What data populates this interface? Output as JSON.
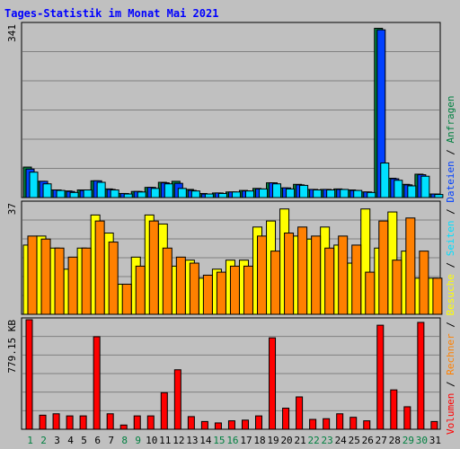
{
  "chart_data": {
    "type": "bar",
    "title": "Tages-Statistik im Monat Mai 2021",
    "categories": [
      "1",
      "2",
      "3",
      "4",
      "5",
      "6",
      "7",
      "8",
      "9",
      "10",
      "11",
      "12",
      "13",
      "14",
      "15",
      "16",
      "17",
      "18",
      "19",
      "20",
      "21",
      "22",
      "23",
      "24",
      "25",
      "26",
      "27",
      "28",
      "29",
      "30",
      "31"
    ],
    "weekend_days": [
      "1",
      "2",
      "8",
      "9",
      "15",
      "16",
      "22",
      "23",
      "29",
      "30"
    ],
    "panels": [
      {
        "id": "hits",
        "axis_max_label": "341",
        "ylim": [
          0,
          341
        ],
        "series": [
          {
            "name": "Anfragen",
            "color": "#008040",
            "values": [
              60,
              32,
              15,
              13,
              15,
              33,
              17,
              8,
              12,
              20,
              30,
              32,
              16,
              8,
              9,
              11,
              14,
              18,
              29,
              19,
              26,
              16,
              16,
              17,
              15,
              11,
              333,
              38,
              26,
              46,
              7
            ]
          },
          {
            "name": "Dateien",
            "color": "#0040ff",
            "values": [
              56,
              32,
              15,
              12,
              14,
              33,
              16,
              8,
              12,
              20,
              29,
              28,
              14,
              7,
              9,
              11,
              13,
              17,
              29,
              19,
              25,
              16,
              16,
              16,
              14,
              11,
              330,
              37,
              25,
              45,
              7
            ]
          },
          {
            "name": "Seiten",
            "color": "#00e0ff",
            "values": [
              50,
              27,
              14,
              10,
              15,
              30,
              15,
              7,
              11,
              18,
              27,
              18,
              13,
              7,
              8,
              11,
              13,
              17,
              27,
              17,
              24,
              15,
              15,
              16,
              14,
              10,
              68,
              34,
              23,
              42,
              6
            ]
          }
        ]
      },
      {
        "id": "visits",
        "axis_max_label": "37",
        "ylim": [
          0,
          37
        ],
        "series": [
          {
            "name": "Besuche",
            "color": "#ffff00",
            "values": [
              23,
              26,
              22,
              15,
              22,
              33,
              27,
              10,
              19,
              33,
              30,
              16,
              18,
              12,
              15,
              18,
              18,
              29,
              31,
              35,
              26,
              25,
              29,
              23,
              17,
              35,
              22,
              34,
              21,
              12,
              12
            ]
          },
          {
            "name": "Rechner",
            "color": "#ff8000",
            "values": [
              26,
              25,
              22,
              19,
              22,
              31,
              24,
              10,
              16,
              31,
              22,
              19,
              17,
              13,
              14,
              16,
              16,
              26,
              21,
              27,
              29,
              26,
              22,
              26,
              23,
              14,
              31,
              18,
              32,
              21,
              12
            ]
          }
        ]
      },
      {
        "id": "volume",
        "axis_max_label": "779.15 KB",
        "ylim": [
          0,
          779.15
        ],
        "series": [
          {
            "name": "Volumen",
            "color": "#ff0000",
            "values": [
              779,
              100,
              110,
              95,
              95,
              658,
              110,
              30,
              95,
              95,
              260,
              423,
              90,
              55,
              45,
              60,
              65,
              95,
              650,
              150,
              230,
              70,
              75,
              110,
              85,
              60,
              740,
              280,
              160,
              760,
              55
            ]
          }
        ]
      }
    ],
    "legend": [
      {
        "text": "Volumen",
        "color": "#ff0000"
      },
      {
        "text": "/",
        "color": "#000000"
      },
      {
        "text": "Rechner",
        "color": "#ff8000"
      },
      {
        "text": "/",
        "color": "#000000"
      },
      {
        "text": "Besuche",
        "color": "#ffff00"
      },
      {
        "text": "/",
        "color": "#000000"
      },
      {
        "text": "Seiten",
        "color": "#00e0ff"
      },
      {
        "text": "/",
        "color": "#000000"
      },
      {
        "text": "Dateien",
        "color": "#0040ff"
      },
      {
        "text": "/",
        "color": "#000000"
      },
      {
        "text": "Anfragen",
        "color": "#008040"
      }
    ],
    "colors": {
      "title": "#0000ff",
      "weekday_label": "#000000",
      "weekend_label": "#008040",
      "panel_bg": "#c0c0c0",
      "grid": "#808080"
    }
  }
}
